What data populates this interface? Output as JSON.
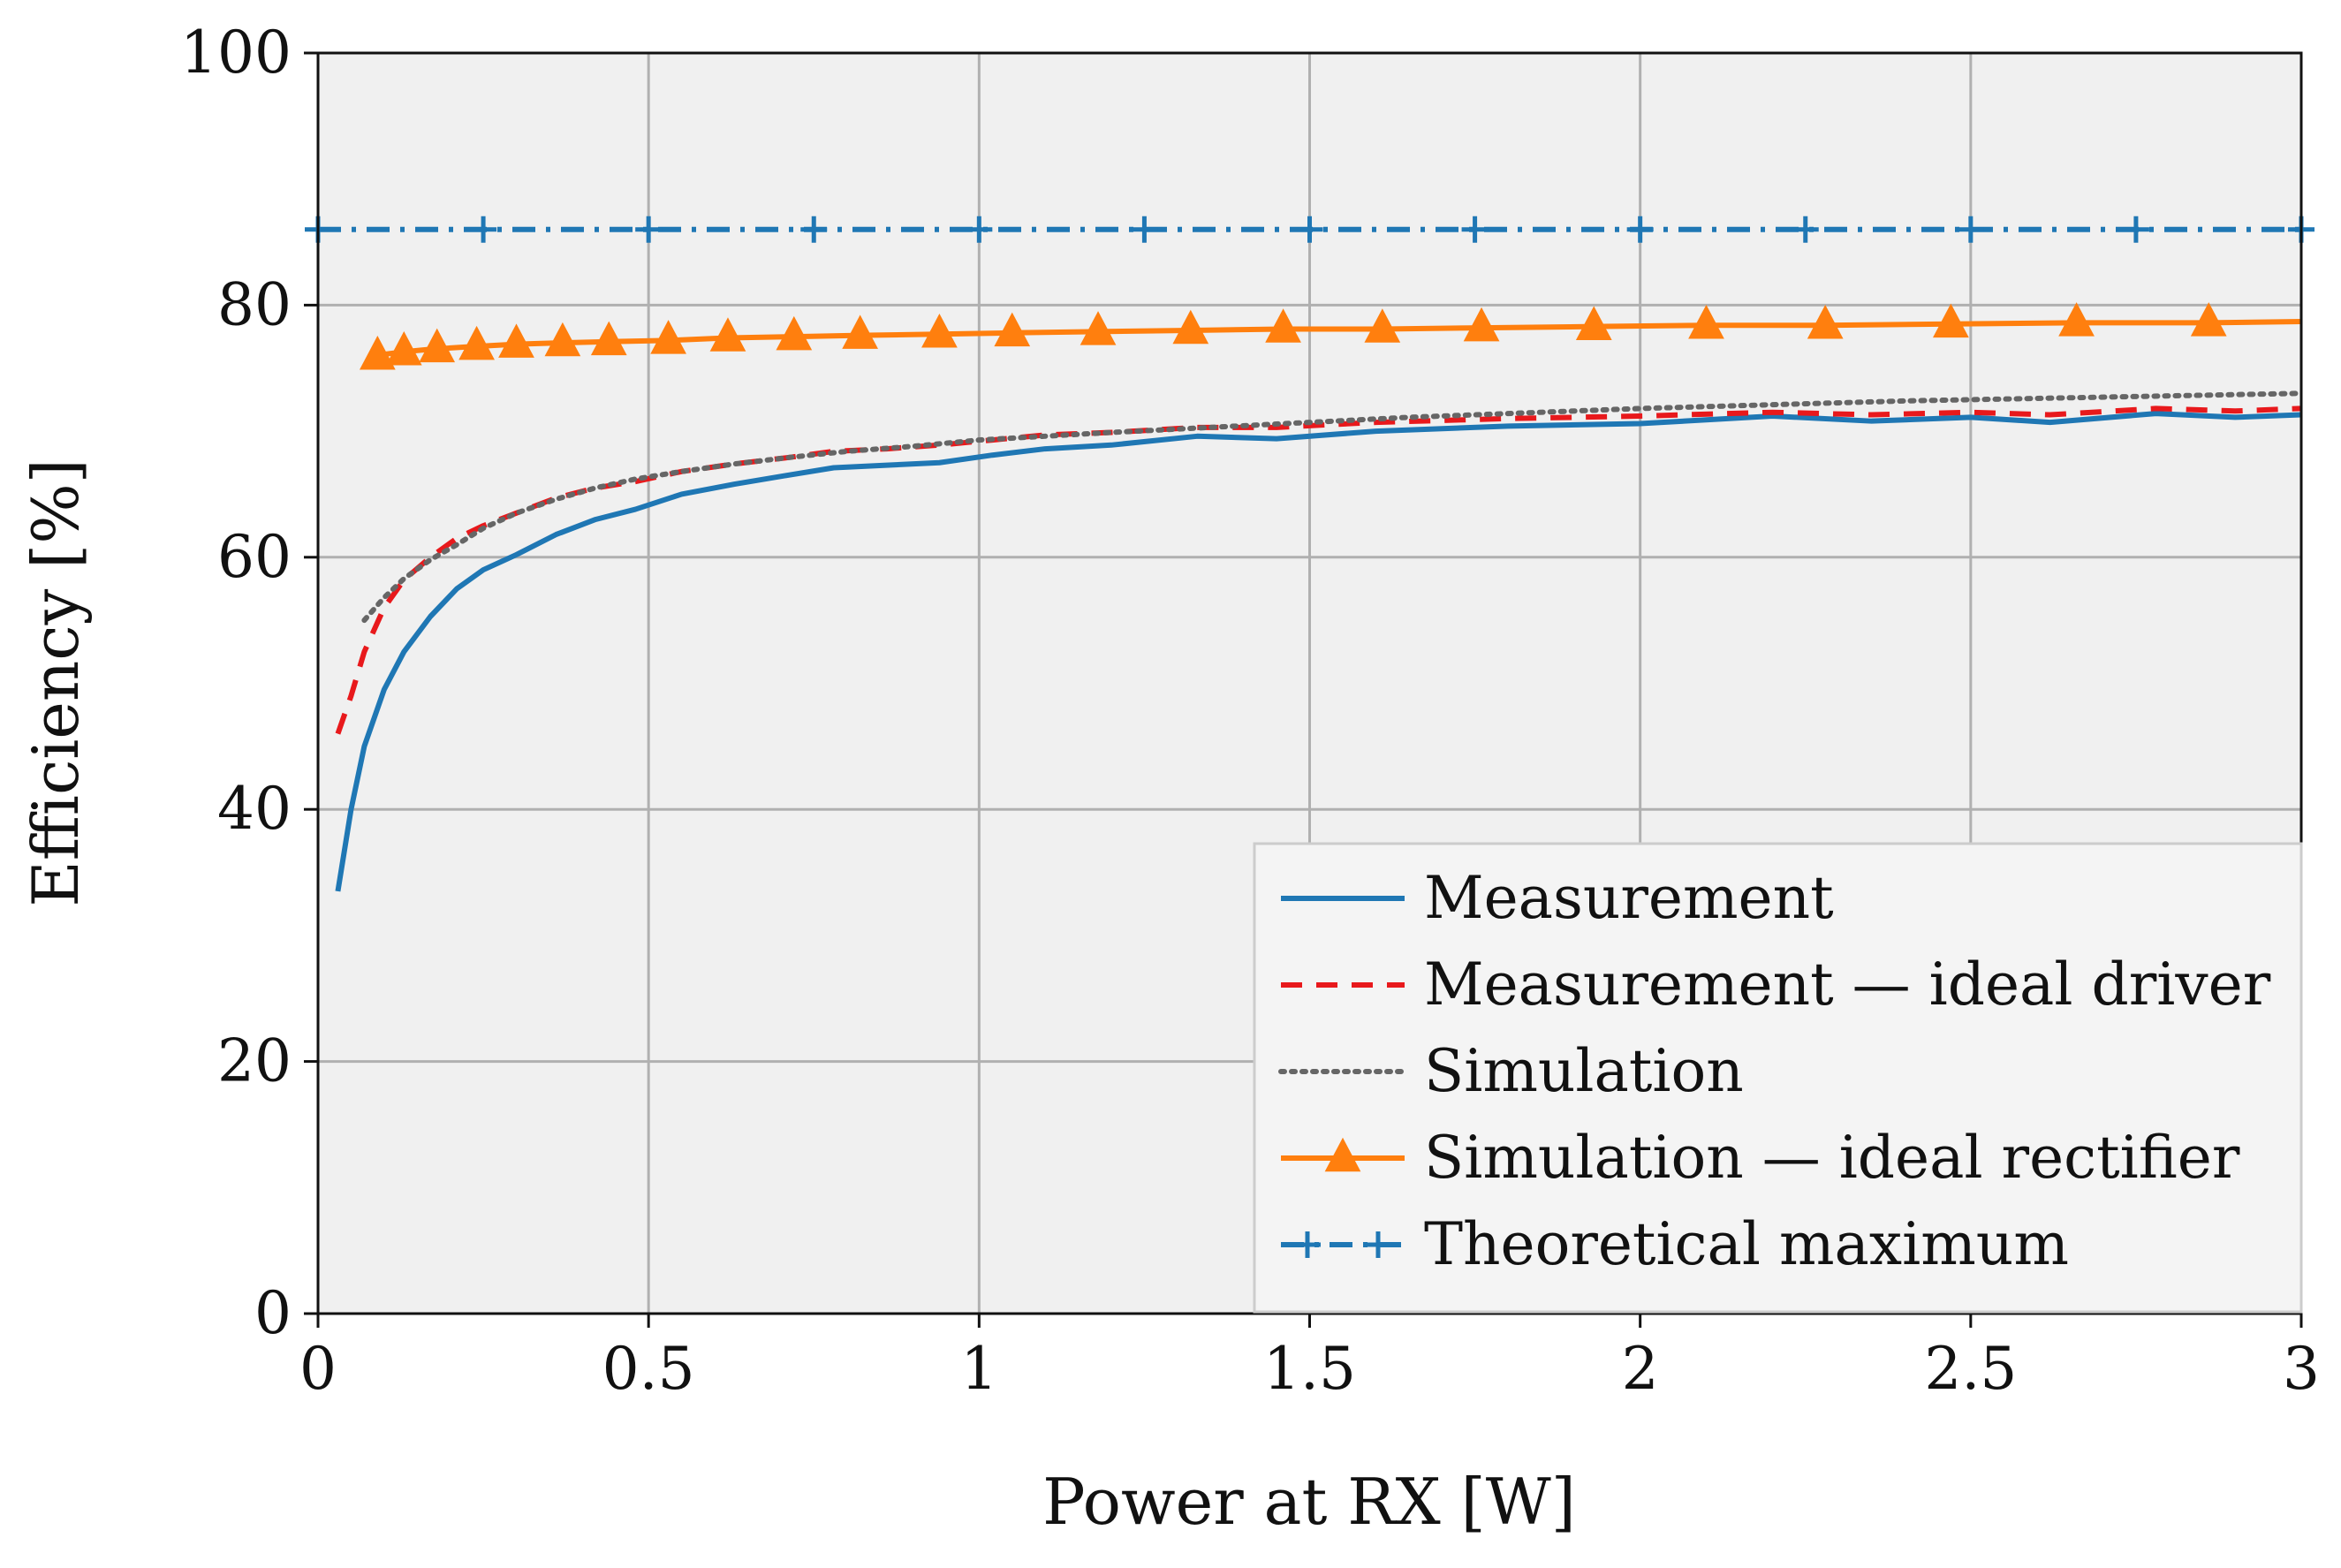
{
  "chart_data": {
    "type": "line",
    "title": "",
    "xlabel": "Power at RX [W]",
    "ylabel": "Efficiency [%]",
    "xlim": [
      0,
      3
    ],
    "ylim": [
      0,
      100
    ],
    "xticks": [
      0,
      0.5,
      1,
      1.5,
      2,
      2.5,
      3
    ],
    "xtick_labels": [
      "0",
      "0.5",
      "1",
      "1.5",
      "2",
      "2.5",
      "3"
    ],
    "yticks": [
      0,
      20,
      40,
      60,
      80,
      100
    ],
    "ytick_labels": [
      "0",
      "20",
      "40",
      "60",
      "80",
      "100"
    ],
    "grid": true,
    "legend_position": "bottom-right",
    "series": [
      {
        "name": "Measurement",
        "color": "#1f77b4",
        "style": "solid",
        "marker": "none",
        "x": [
          0.03,
          0.05,
          0.07,
          0.1,
          0.13,
          0.17,
          0.21,
          0.25,
          0.3,
          0.36,
          0.42,
          0.48,
          0.55,
          0.63,
          0.71,
          0.78,
          0.86,
          0.94,
          1.02,
          1.1,
          1.2,
          1.33,
          1.45,
          1.6,
          1.8,
          2.0,
          2.2,
          2.35,
          2.5,
          2.62,
          2.78,
          2.9,
          3.0
        ],
        "y": [
          33.5,
          40,
          45,
          49.5,
          52.5,
          55.3,
          57.5,
          59,
          60.2,
          61.8,
          63,
          63.8,
          65,
          65.8,
          66.5,
          67.1,
          67.3,
          67.5,
          68.1,
          68.6,
          68.9,
          69.6,
          69.4,
          70,
          70.4,
          70.6,
          71.2,
          70.8,
          71.1,
          70.7,
          71.4,
          71.1,
          71.3
        ]
      },
      {
        "name": "Measurement — ideal driver",
        "color": "#e8191c",
        "style": "dashed",
        "marker": "none",
        "x": [
          0.03,
          0.05,
          0.07,
          0.1,
          0.13,
          0.17,
          0.21,
          0.25,
          0.3,
          0.36,
          0.42,
          0.48,
          0.55,
          0.63,
          0.71,
          0.78,
          0.86,
          0.94,
          1.02,
          1.1,
          1.2,
          1.33,
          1.45,
          1.6,
          1.8,
          2.0,
          2.2,
          2.35,
          2.5,
          2.62,
          2.78,
          2.9,
          3.0
        ],
        "y": [
          46,
          49,
          52.5,
          56,
          58.2,
          60,
          61.5,
          62.5,
          63.5,
          64.7,
          65.5,
          66,
          66.8,
          67.4,
          67.9,
          68.4,
          68.6,
          68.9,
          69.3,
          69.7,
          69.9,
          70.3,
          70.3,
          70.7,
          71,
          71.2,
          71.5,
          71.3,
          71.5,
          71.3,
          71.8,
          71.6,
          71.8
        ]
      },
      {
        "name": "Simulation",
        "color": "#666666",
        "style": "dotted",
        "marker": "none",
        "x": [
          0.07,
          0.1,
          0.13,
          0.17,
          0.21,
          0.25,
          0.3,
          0.36,
          0.42,
          0.48,
          0.55,
          0.63,
          0.71,
          0.8,
          0.9,
          1.0,
          1.1,
          1.2,
          1.35,
          1.5,
          1.65,
          1.8,
          2.0,
          2.2,
          2.4,
          2.6,
          2.8,
          3.0
        ],
        "y": [
          55,
          56.8,
          58.3,
          59.8,
          61,
          62.3,
          63.5,
          64.6,
          65.5,
          66.2,
          66.8,
          67.4,
          67.9,
          68.4,
          68.8,
          69.3,
          69.6,
          69.9,
          70.3,
          70.7,
          71.1,
          71.4,
          71.8,
          72.1,
          72.4,
          72.6,
          72.8,
          73
        ]
      },
      {
        "name": "Simulation — ideal rectifier",
        "color": "#ff7f0e",
        "style": "solid",
        "marker": "triangle",
        "x": [
          0.08,
          0.1,
          0.13,
          0.17,
          0.23,
          0.3,
          0.36,
          0.44,
          0.53,
          0.62,
          0.72,
          0.82,
          0.94,
          1.05,
          1.18,
          1.32,
          1.46,
          1.61,
          1.76,
          1.93,
          2.1,
          2.28,
          2.47,
          2.66,
          2.86,
          3.0
        ],
        "y": [
          75.8,
          76.1,
          76.3,
          76.5,
          76.7,
          76.9,
          77,
          77.1,
          77.2,
          77.4,
          77.5,
          77.6,
          77.7,
          77.8,
          77.9,
          78,
          78.1,
          78.1,
          78.2,
          78.3,
          78.4,
          78.4,
          78.5,
          78.6,
          78.6,
          78.7
        ],
        "marker_x": [
          0.09,
          0.13,
          0.18,
          0.24,
          0.3,
          0.37,
          0.44,
          0.53,
          0.62,
          0.72,
          0.82,
          0.94,
          1.05,
          1.18,
          1.32,
          1.46,
          1.61,
          1.76,
          1.93,
          2.1,
          2.28,
          2.47,
          2.66,
          2.86
        ]
      },
      {
        "name": "Theoretical maximum",
        "color": "#1f77b4",
        "style": "dashdot",
        "marker": "plus",
        "x": [
          0,
          3
        ],
        "y": [
          86,
          86
        ],
        "marker_x": [
          0,
          0.25,
          0.5,
          0.75,
          1.0,
          1.25,
          1.5,
          1.75,
          2.0,
          2.25,
          2.5,
          2.75,
          3.0
        ]
      }
    ]
  }
}
